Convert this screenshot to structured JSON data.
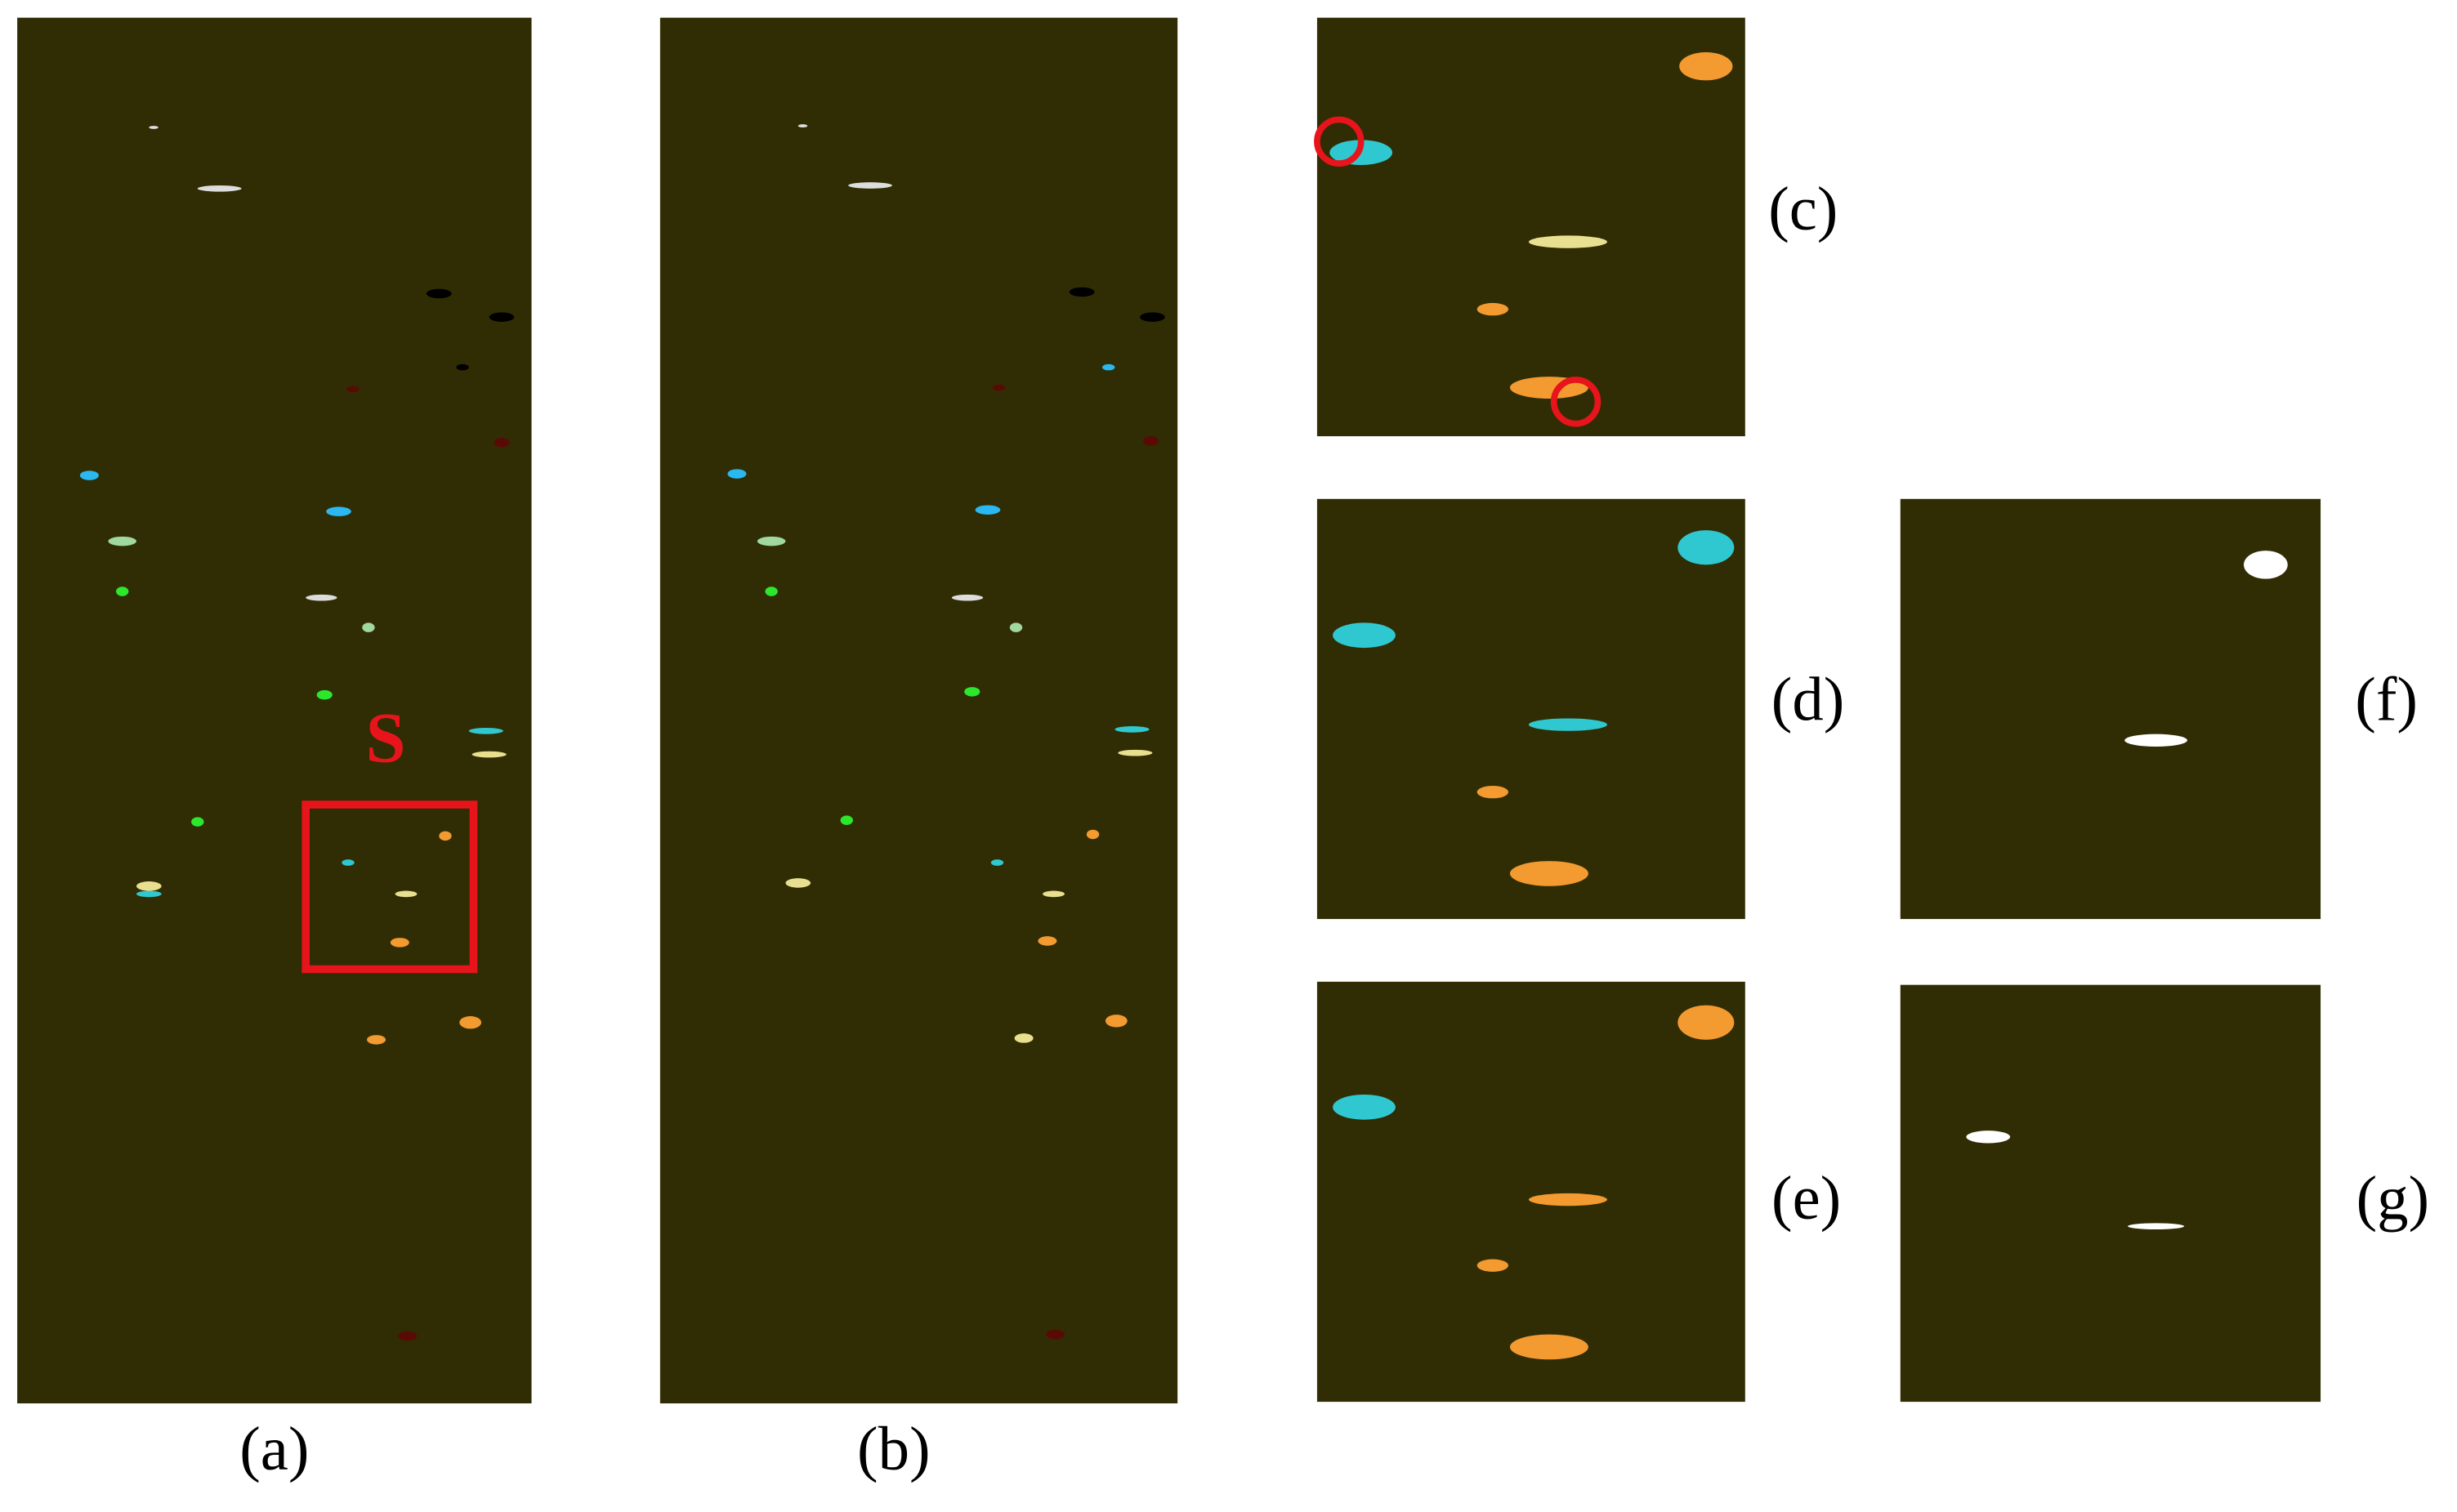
{
  "panels": [
    {
      "label": "(a)"
    },
    {
      "label": "(b)"
    },
    {
      "label": "(c)"
    },
    {
      "label": "(d)"
    },
    {
      "label": "(e)"
    },
    {
      "label": "(f)"
    },
    {
      "label": "(g)"
    }
  ],
  "annotation": "S"
}
